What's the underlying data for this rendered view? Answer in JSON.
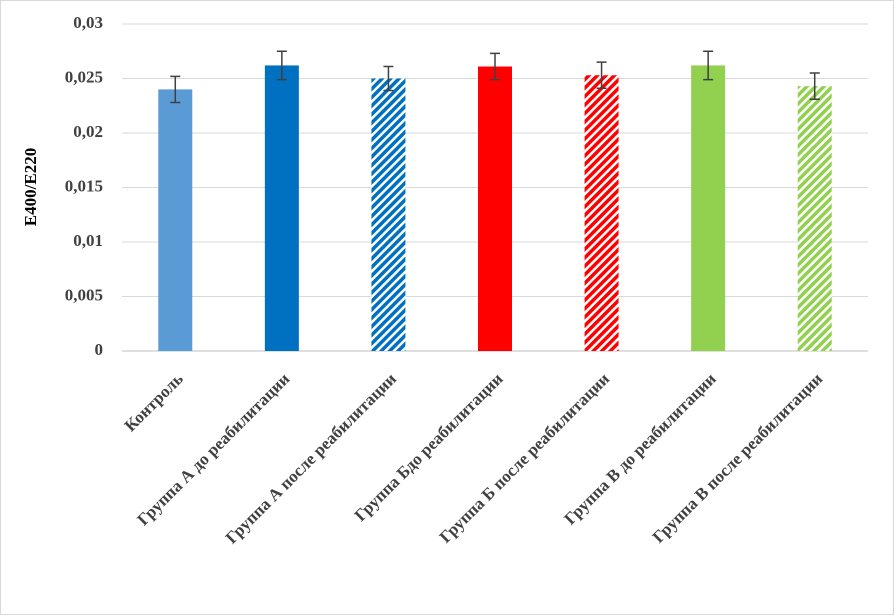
{
  "chart_data": {
    "type": "bar",
    "y_label": "E400/E220",
    "categories": [
      "Контроль",
      "Группа А до реабилитации",
      "Группа А после реабилитации",
      "Группа Бдо реабилитации",
      "Группа Б после реабилитации",
      "Группа В до реабилитации",
      "Группа В после реабилитации"
    ],
    "values": [
      0.024,
      0.0262,
      0.025,
      0.0261,
      0.0253,
      0.0262,
      0.0243
    ],
    "errors": [
      0.0012,
      0.0013,
      0.0011,
      0.0012,
      0.0012,
      0.0013,
      0.0012
    ],
    "colors": [
      "#5b9bd5",
      "#0070c0",
      "#0070c0",
      "#ff0000",
      "#ff0000",
      "#92d050",
      "#92d050"
    ],
    "hatched": [
      false,
      false,
      true,
      false,
      true,
      false,
      true
    ],
    "ylim": [
      0,
      0.03
    ],
    "yticks": [
      0,
      {
        "value": 0.005,
        "label": "0,005"
      },
      {
        "value": 0.01,
        "label": "0,01"
      },
      {
        "value": 0.015,
        "label": "0,015"
      },
      {
        "value": 0.02,
        "label": "0,02"
      },
      {
        "value": 0.025,
        "label": "0,025"
      },
      {
        "value": 0.03,
        "label": "0,03"
      }
    ],
    "grid": true
  }
}
